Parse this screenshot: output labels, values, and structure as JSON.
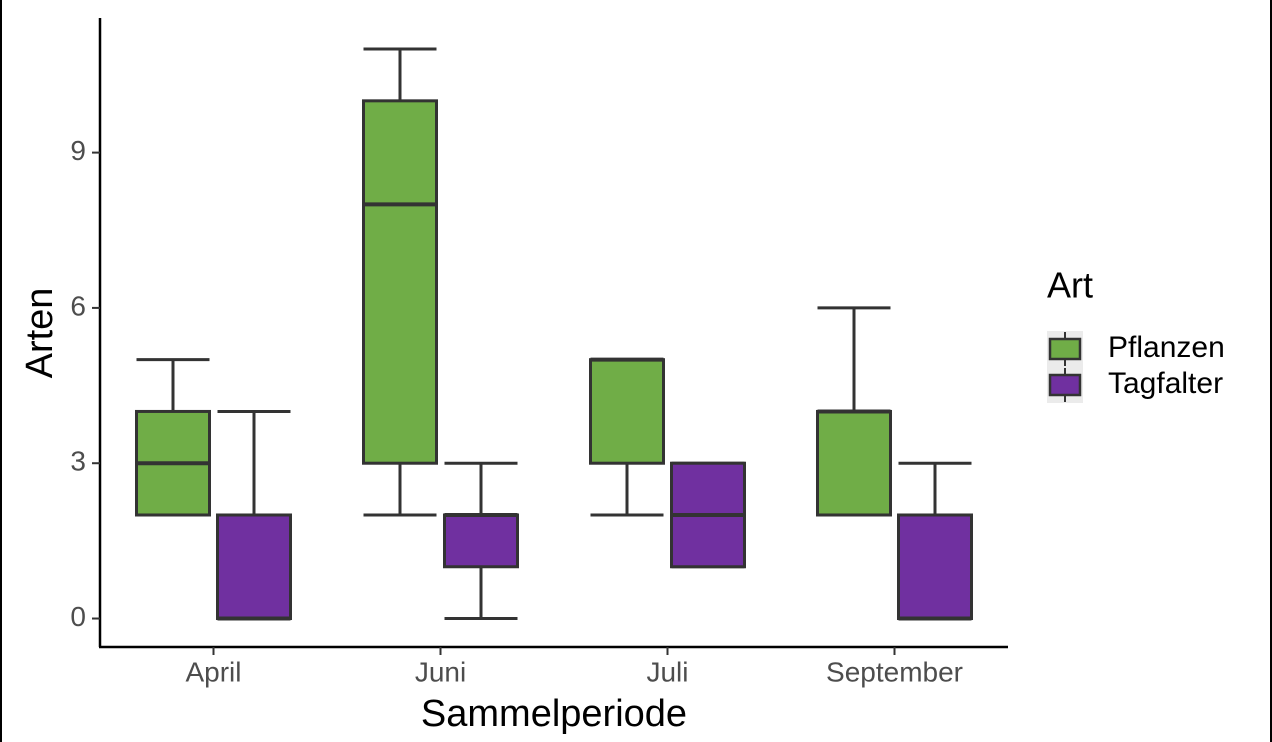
{
  "chart_data": {
    "type": "boxplot",
    "x_label": "Sammelperiode",
    "y_label": "Arten",
    "categories": [
      "April",
      "Juni",
      "Juli",
      "September"
    ],
    "legend_title": "Art",
    "legend_position": "right",
    "ylim": [
      -0.55,
      11.6
    ],
    "yticks": [
      0,
      3,
      6,
      9
    ],
    "series": [
      {
        "name": "Pflanzen",
        "color": "#70ad47",
        "min": [
          2,
          2,
          2,
          2
        ],
        "q1": [
          2,
          3,
          3,
          2
        ],
        "median": [
          3,
          8,
          5,
          4
        ],
        "q3": [
          4,
          10,
          5,
          4
        ],
        "max": [
          5,
          11,
          5,
          6
        ]
      },
      {
        "name": "Tagfalter",
        "color": "#7030a0",
        "min": [
          0,
          0,
          1,
          0
        ],
        "q1": [
          0,
          1,
          1,
          0
        ],
        "median": [
          0,
          2,
          2,
          0
        ],
        "q3": [
          2,
          2,
          3,
          2
        ],
        "max": [
          4,
          3,
          3,
          3
        ]
      }
    ]
  }
}
